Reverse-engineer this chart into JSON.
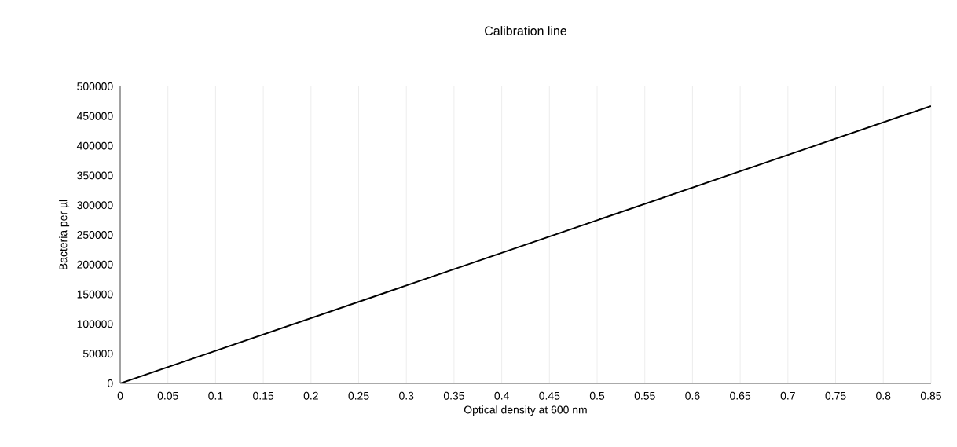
{
  "chart_data": {
    "type": "line",
    "title": "Calibration line",
    "xlabel": "Optical density at 600 nm",
    "ylabel": "Bacteria per µl",
    "x": [
      0,
      0.85
    ],
    "series": [
      {
        "color": "#000000",
        "values": [
          0,
          467000
        ]
      }
    ],
    "xlim": [
      0,
      0.85
    ],
    "xticks": [
      0,
      0.05,
      0.1,
      0.15,
      0.2,
      0.25,
      0.3,
      0.35,
      0.4,
      0.45,
      0.5,
      0.55,
      0.6,
      0.65,
      0.7,
      0.75,
      0.8,
      0.85
    ],
    "ylim": [
      0,
      500000
    ],
    "yticks": [
      0,
      50000,
      100000,
      150000,
      200000,
      250000,
      300000,
      350000,
      400000,
      450000,
      500000
    ],
    "grid": "x",
    "marker": "none",
    "line_style": "solid"
  }
}
